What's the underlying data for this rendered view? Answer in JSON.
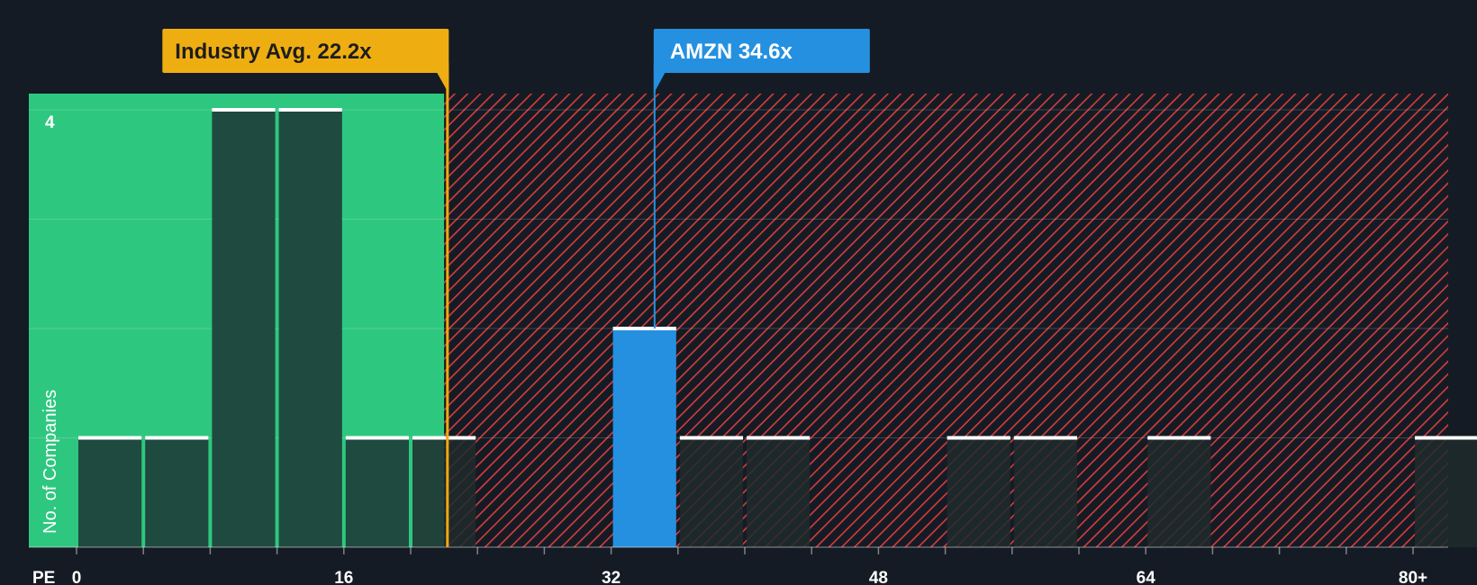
{
  "colors": {
    "background": "#151b24",
    "good_zone": "#2ec77f",
    "bad_zone": "#d63d3d",
    "bar_dark": "#1f4a40",
    "bar_dark_hatched": "#1e2a2d",
    "company_bar": "#2590e0",
    "industry_line": "#f0a812",
    "industry_label_bg": "#eeae12",
    "company_label_bg": "#2590e0",
    "bar_cap": "#ffffff"
  },
  "callouts": {
    "industry": {
      "label": "Industry Avg. 22.2x",
      "value": 22.2
    },
    "company": {
      "label": "AMZN 34.6x",
      "value": 34.6
    }
  },
  "chart_data": {
    "type": "bar",
    "title": "",
    "xlabel": "PE",
    "ylabel": "No. of Companies",
    "xlim": [
      0,
      82
    ],
    "ylim": [
      0,
      4.15
    ],
    "bin_width": 4,
    "x_ticks": [
      {
        "value": 0,
        "label": "0"
      },
      {
        "value": 16,
        "label": "16"
      },
      {
        "value": 32,
        "label": "32"
      },
      {
        "value": 48,
        "label": "48"
      },
      {
        "value": 64,
        "label": "64"
      },
      {
        "value": 80,
        "label": "80+"
      }
    ],
    "y_ticks": [
      {
        "value": 4,
        "label": "4"
      }
    ],
    "grid": true,
    "good_zone_max": 22,
    "bins": [
      {
        "start": 0,
        "count": 1
      },
      {
        "start": 4,
        "count": 1
      },
      {
        "start": 8,
        "count": 4
      },
      {
        "start": 12,
        "count": 4
      },
      {
        "start": 16,
        "count": 1
      },
      {
        "start": 20,
        "count": 1
      },
      {
        "start": 32,
        "count": 2,
        "highlight": true
      },
      {
        "start": 36,
        "count": 1
      },
      {
        "start": 40,
        "count": 1
      },
      {
        "start": 52,
        "count": 1
      },
      {
        "start": 56,
        "count": 1
      },
      {
        "start": 64,
        "count": 1
      },
      {
        "start": 80,
        "count": 1
      }
    ]
  }
}
